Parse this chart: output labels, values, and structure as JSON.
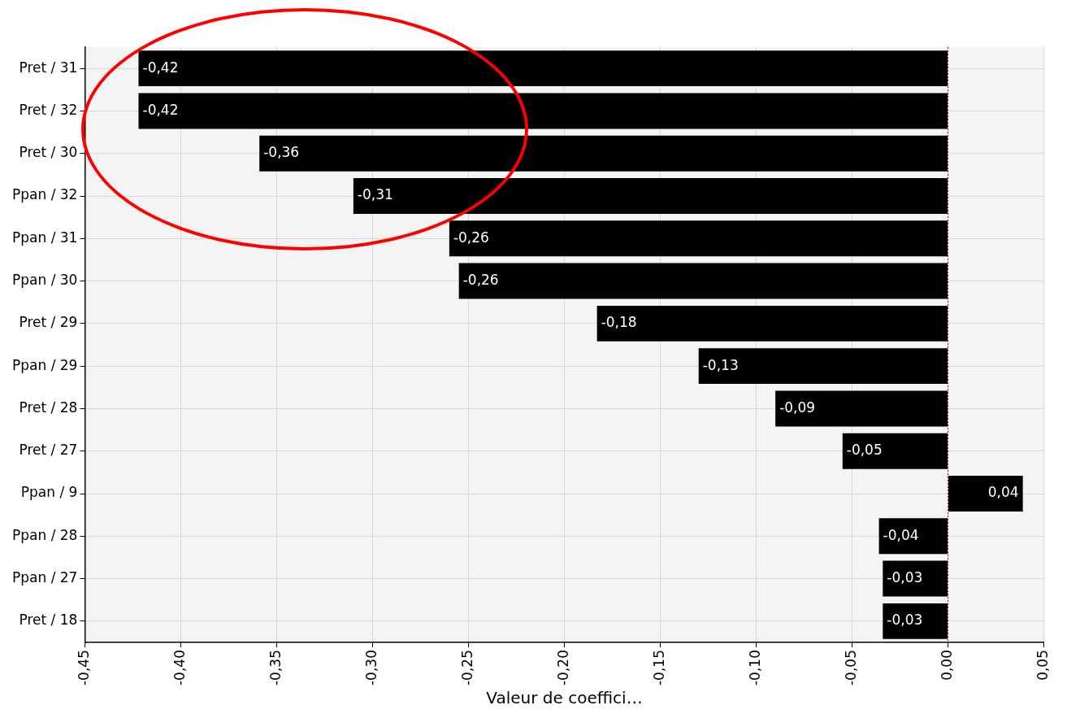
{
  "chart_data": {
    "type": "bar",
    "orientation": "horizontal",
    "xlabel": "Valeur de coeffici…",
    "categories": [
      "Pret / 31",
      "Pret / 32",
      "Pret / 30",
      "Ppan / 32",
      "Ppan / 31",
      "Ppan / 30",
      "Pret / 29",
      "Ppan / 29",
      "Pret / 28",
      "Pret / 27",
      "Ppan / 9",
      "Ppan / 28",
      "Ppan / 27",
      "Pret / 18"
    ],
    "values": [
      -0.422,
      -0.422,
      -0.359,
      -0.31,
      -0.26,
      -0.255,
      -0.183,
      -0.13,
      -0.09,
      -0.055,
      0.039,
      -0.036,
      -0.034,
      -0.034
    ],
    "value_labels": [
      "-0,42",
      "-0,42",
      "-0,36",
      "-0,31",
      "-0,26",
      "-0,26",
      "-0,18",
      "-0,13",
      "-0,09",
      "-0,05",
      "0,04",
      "-0,04",
      "-0,03",
      "-0,03"
    ],
    "color": "#000000",
    "xlim": [
      -0.45,
      0.05
    ],
    "xticks": [
      {
        "value": -0.45,
        "label": "-0,45"
      },
      {
        "value": -0.4,
        "label": "-0,40"
      },
      {
        "value": -0.35,
        "label": "-0,35"
      },
      {
        "value": -0.3,
        "label": "-0,30"
      },
      {
        "value": -0.25,
        "label": "-0,25"
      },
      {
        "value": -0.2,
        "label": "-0,20"
      },
      {
        "value": -0.15,
        "label": "-0,15"
      },
      {
        "value": -0.1,
        "label": "-0,10"
      },
      {
        "value": -0.05,
        "label": "-0,05"
      },
      {
        "value": 0,
        "label": "0,00"
      },
      {
        "value": 0.05,
        "label": "0,05"
      }
    ],
    "ref_lines": [
      {
        "axis": "x",
        "value": 0,
        "color": "#c00000",
        "line_style": "dotted"
      }
    ],
    "grid": true,
    "legend": false
  }
}
